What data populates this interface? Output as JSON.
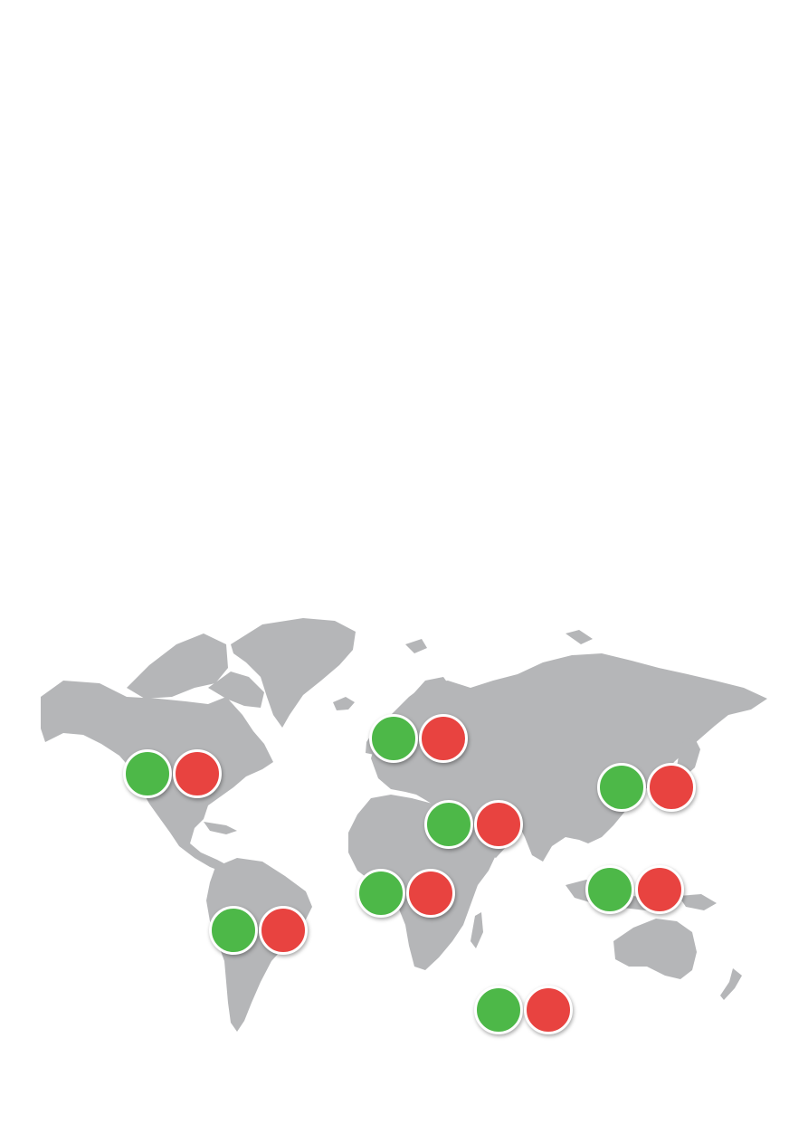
{
  "map": {
    "land_color": "#b5b6b8",
    "background_color": "#ffffff",
    "marker_colors": {
      "positive": "#4db848",
      "negative": "#e84340"
    },
    "marker_border_color": "#ffffff"
  },
  "regions": [
    {
      "id": "north-america"
    },
    {
      "id": "europe"
    },
    {
      "id": "east-asia"
    },
    {
      "id": "middle-east"
    },
    {
      "id": "central-africa"
    },
    {
      "id": "south-east-asia"
    },
    {
      "id": "south-america"
    },
    {
      "id": "southern-ocean"
    }
  ]
}
